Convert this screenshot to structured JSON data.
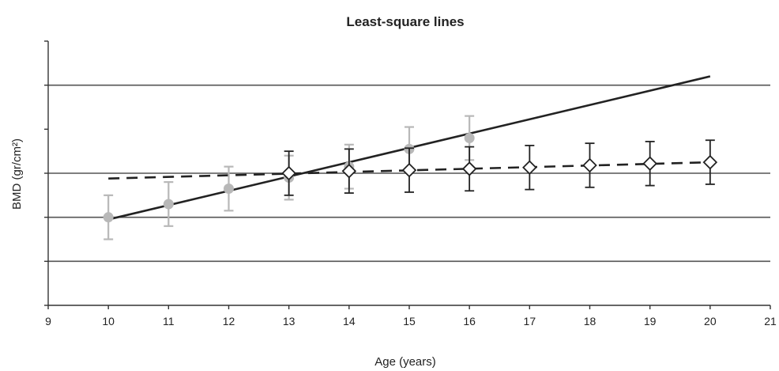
{
  "chart_data": {
    "type": "scatter",
    "title": "Least-square lines",
    "xlabel": "Age (years)",
    "ylabel": "BMD (gr/cm²)",
    "xlim": [
      9,
      21
    ],
    "x_ticks": [
      "9",
      "10",
      "11",
      "12",
      "13",
      "14",
      "15",
      "16",
      "17",
      "18",
      "19",
      "20",
      "21"
    ],
    "ylim": [
      0,
      6
    ],
    "y_grid_values": [
      1,
      2,
      3,
      5
    ],
    "y_tick_labels_shown": false,
    "grid": true,
    "legend": "none",
    "series": [
      {
        "style": "gray-filled-circles",
        "color": "#b8b8b8",
        "x": [
          10,
          11,
          12,
          13,
          14,
          15,
          16
        ],
        "y": [
          2.0,
          2.3,
          2.65,
          2.9,
          3.15,
          3.55,
          3.8
        ],
        "error": [
          0.5,
          0.5,
          0.5,
          0.5,
          0.5,
          0.5,
          0.5
        ]
      },
      {
        "style": "open-diamonds",
        "color": "#222222",
        "x": [
          13,
          14,
          15,
          16,
          17,
          18,
          19,
          20
        ],
        "y": [
          3.0,
          3.05,
          3.07,
          3.1,
          3.13,
          3.18,
          3.22,
          3.25
        ],
        "error": [
          0.5,
          0.5,
          0.5,
          0.5,
          0.5,
          0.5,
          0.5,
          0.5
        ]
      }
    ],
    "lines": [
      {
        "style": "solid",
        "color": "#222222",
        "x": [
          10,
          20
        ],
        "y": [
          1.95,
          5.2
        ]
      },
      {
        "style": "dashed",
        "color": "#222222",
        "x": [
          10,
          20
        ],
        "y": [
          2.88,
          3.25
        ]
      }
    ]
  }
}
